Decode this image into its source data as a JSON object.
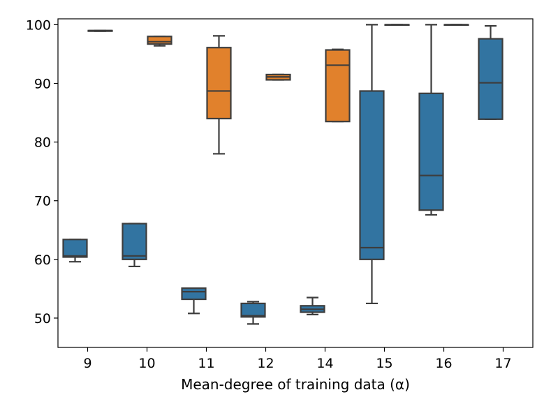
{
  "chart_data": {
    "type": "boxplot",
    "title": "",
    "xlabel": "Mean-degree of training data (α)",
    "ylabel": "",
    "ylim": [
      45,
      101
    ],
    "yticks": [
      50,
      60,
      70,
      80,
      90,
      100
    ],
    "categories": [
      "9",
      "10",
      "11",
      "12",
      "14",
      "15",
      "16",
      "17"
    ],
    "series": [
      {
        "name": "blue",
        "color": "#3274a1",
        "boxes": [
          {
            "category": "9",
            "whislo": 59.6,
            "q1": 60.4,
            "med": 60.6,
            "q3": 63.4,
            "whishi": 63.4
          },
          {
            "category": "10",
            "whislo": 58.8,
            "q1": 60.0,
            "med": 60.6,
            "q3": 66.1,
            "whishi": 66.1
          },
          {
            "category": "11",
            "whislo": 50.8,
            "q1": 53.2,
            "med": 54.5,
            "q3": 55.1,
            "whishi": 55.1
          },
          {
            "category": "12",
            "whislo": 49.0,
            "q1": 50.2,
            "med": 50.4,
            "q3": 52.5,
            "whishi": 52.8
          },
          {
            "category": "14",
            "whislo": 50.6,
            "q1": 51.0,
            "med": 51.5,
            "q3": 52.1,
            "whishi": 53.5
          },
          {
            "category": "15",
            "whislo": 52.5,
            "q1": 60.0,
            "med": 62.0,
            "q3": 88.7,
            "whishi": 100.0
          },
          {
            "category": "16",
            "whislo": 67.6,
            "q1": 68.4,
            "med": 74.3,
            "q3": 88.3,
            "whishi": 100.0
          },
          {
            "category": "17",
            "whislo": 83.9,
            "q1": 83.9,
            "med": 90.1,
            "q3": 97.6,
            "whishi": 99.8
          }
        ]
      },
      {
        "name": "orange",
        "color": "#e1812c",
        "boxes": [
          {
            "category": "9",
            "whislo": 98.9,
            "q1": 98.9,
            "med": 99.0,
            "q3": 99.0,
            "whishi": 99.0
          },
          {
            "category": "10",
            "whislo": 96.4,
            "q1": 96.7,
            "med": 97.1,
            "q3": 98.0,
            "whishi": 98.0
          },
          {
            "category": "11",
            "whislo": 78.0,
            "q1": 84.0,
            "med": 88.7,
            "q3": 96.1,
            "whishi": 98.1
          },
          {
            "category": "12",
            "whislo": 90.6,
            "q1": 90.6,
            "med": 91.1,
            "q3": 91.5,
            "whishi": 91.5
          },
          {
            "category": "14",
            "whislo": 83.5,
            "q1": 83.5,
            "med": 93.1,
            "q3": 95.7,
            "whishi": 95.8
          },
          {
            "category": "15",
            "whislo": 100.0,
            "q1": 100.0,
            "med": 100.0,
            "q3": 100.0,
            "whishi": 100.0
          },
          {
            "category": "16",
            "whislo": 100.0,
            "q1": 100.0,
            "med": 100.0,
            "q3": 100.0,
            "whishi": 100.0
          }
        ]
      }
    ]
  }
}
